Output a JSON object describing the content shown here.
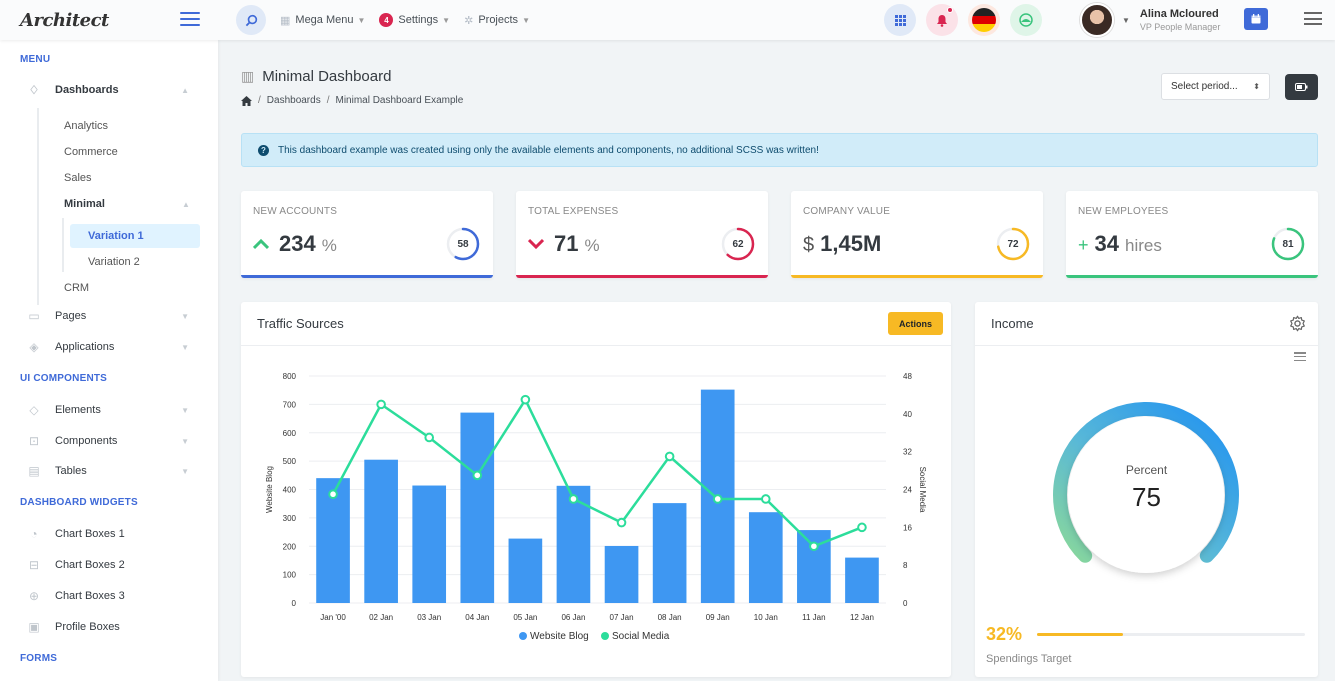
{
  "header": {
    "logo": "Architect",
    "nav": [
      {
        "label": "Mega Menu",
        "icon": "grid-icon"
      },
      {
        "label": "Settings",
        "icon": "gear-icon",
        "badge": "4"
      },
      {
        "label": "Projects",
        "icon": "cog-icon"
      }
    ],
    "user": {
      "name": "Alina Mcloured",
      "role": "VP People Manager"
    }
  },
  "sidebar": {
    "headings": [
      "MENU",
      "UI COMPONENTS",
      "DASHBOARD WIDGETS",
      "FORMS"
    ],
    "dashboards": {
      "label": "Dashboards",
      "children": [
        "Analytics",
        "Commerce",
        "Sales",
        "Minimal",
        "CRM"
      ],
      "minimal_children": [
        "Variation 1",
        "Variation 2"
      ]
    },
    "menu_items": [
      "Pages",
      "Applications"
    ],
    "ui_items": [
      "Elements",
      "Components",
      "Tables"
    ],
    "widget_items": [
      "Chart Boxes 1",
      "Chart Boxes 2",
      "Chart Boxes 3",
      "Profile Boxes"
    ]
  },
  "page": {
    "title": "Minimal Dashboard",
    "breadcrumb": [
      "Dashboards",
      "Minimal Dashboard Example"
    ],
    "period_placeholder": "Select period...",
    "alert": "This dashboard example was created using only the available elements and components, no additional SCSS was written!"
  },
  "stats": [
    {
      "label": "NEW ACCOUNTS",
      "prefix": "^",
      "value": "234",
      "unit": "%",
      "ring": 58,
      "color": "#3f6ad8",
      "prefix_color": "#3ac47d"
    },
    {
      "label": "TOTAL EXPENSES",
      "prefix": "v",
      "value": "71",
      "unit": "%",
      "ring": 62,
      "color": "#d92550",
      "prefix_color": "#d92550"
    },
    {
      "label": "COMPANY VALUE",
      "prefix": "$",
      "value": "1,45M",
      "unit": "",
      "ring": 72,
      "color": "#f7b924",
      "prefix_color": "#555"
    },
    {
      "label": "NEW EMPLOYEES",
      "prefix": "+",
      "value": "34",
      "unit": "hires",
      "ring": 81,
      "color": "#3ac47d",
      "prefix_color": "#3ac47d"
    }
  ],
  "traffic": {
    "title": "Traffic Sources",
    "actions_label": "Actions"
  },
  "income": {
    "title": "Income",
    "gauge_label": "Percent",
    "gauge_value": "75",
    "gauge_fraction": 0.75,
    "spend_pct": "32%",
    "spend_fraction": 0.32,
    "spend_label": "Spendings Target"
  },
  "chart_data": {
    "type": "bar",
    "categories": [
      "Jan '00",
      "02 Jan",
      "03 Jan",
      "04 Jan",
      "05 Jan",
      "06 Jan",
      "07 Jan",
      "08 Jan",
      "09 Jan",
      "10 Jan",
      "11 Jan",
      "12 Jan"
    ],
    "series": [
      {
        "name": "Website Blog",
        "type": "bar",
        "axis": "left",
        "color": "#3e97f2",
        "values": [
          440,
          505,
          414,
          671,
          227,
          413,
          201,
          352,
          752,
          320,
          257,
          160
        ]
      },
      {
        "name": "Social Media",
        "type": "line",
        "axis": "right",
        "color": "#2cdd9b",
        "values": [
          23,
          42,
          35,
          27,
          43,
          22,
          17,
          31,
          22,
          22,
          12,
          16
        ]
      }
    ],
    "ylabel": "Website Blog",
    "y2label": "Social Media",
    "ylim": [
      0,
      800
    ],
    "yticks": [
      0,
      100,
      200,
      300,
      400,
      500,
      600,
      700,
      800
    ],
    "y2lim": [
      0,
      48
    ],
    "y2ticks": [
      0,
      8,
      16,
      24,
      32,
      40,
      48
    ],
    "legend": "bottom",
    "grid": true
  }
}
